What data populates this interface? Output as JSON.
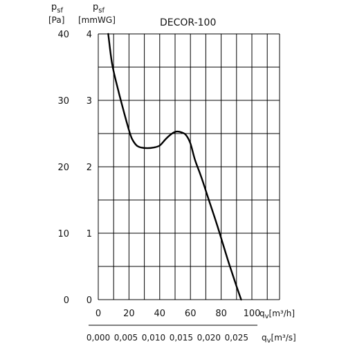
{
  "chart_data": {
    "type": "line",
    "title": "DECOR-100",
    "y_axes": {
      "left": {
        "symbol": "p",
        "subscript": "sf",
        "unit": "[Pa]",
        "ticks": [
          "40",
          "30",
          "20",
          "10",
          "0"
        ]
      },
      "right": {
        "symbol": "p",
        "subscript": "sf",
        "unit": "[mmWG]",
        "ticks": [
          "4",
          "3",
          "2",
          "1",
          "0"
        ]
      },
      "ylim_pa": [
        0,
        40
      ]
    },
    "x_axes": {
      "primary": {
        "ticks": [
          "0",
          "20",
          "40",
          "60",
          "80",
          "100"
        ],
        "label_symbol": "q",
        "label_subscript": "v",
        "label_unit": "[m³/h]",
        "xlim": [
          0,
          100
        ]
      },
      "secondary": {
        "ticks": [
          "0,000",
          "0,005",
          "0,010",
          "0,015",
          "0,020",
          "0,025"
        ],
        "label_symbol": "q",
        "label_subscript": "v",
        "label_unit": "[m³/s]"
      }
    },
    "grid": true,
    "series": [
      {
        "color": "#000000",
        "x": [
          6.5,
          9,
          13,
          17,
          20,
          22,
          25,
          28,
          32,
          36,
          40,
          44,
          48,
          51,
          54,
          57,
          60,
          63,
          67,
          72,
          77,
          81,
          85,
          89,
          93
        ],
        "y": [
          40,
          35.5,
          31.5,
          28,
          25.5,
          24.2,
          23.2,
          22.9,
          22.8,
          22.9,
          23.2,
          24.2,
          25,
          25.3,
          25.2,
          24.8,
          23.5,
          21,
          18.5,
          15,
          11.5,
          8.5,
          5.5,
          2.7,
          0
        ]
      }
    ]
  }
}
